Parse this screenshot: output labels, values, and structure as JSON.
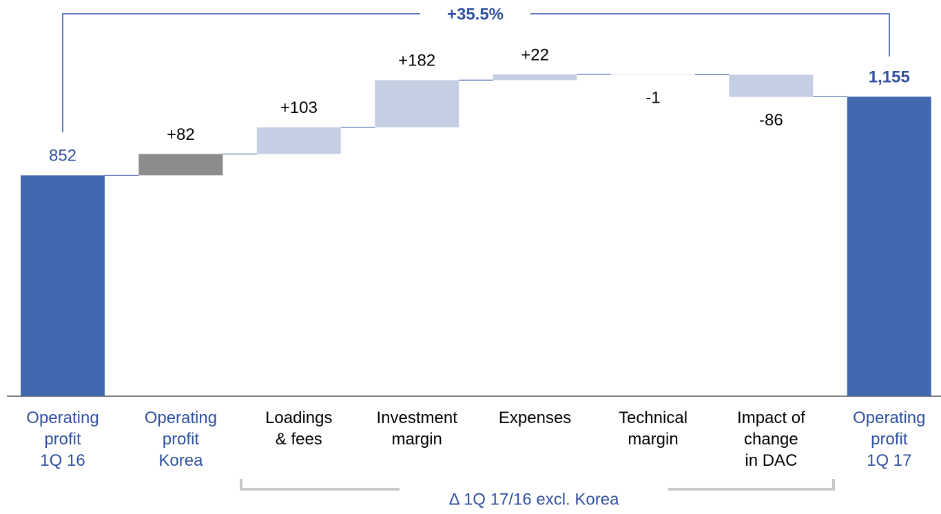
{
  "chart_data": {
    "type": "waterfall",
    "categories": [
      "Operating\nprofit\n1Q 16",
      "Operating\nprofit\nKorea",
      "Loadings\n& fees",
      "Investment\nmargin",
      "Expenses",
      "Technical\nmargin",
      "Impact of\nchange\nin DAC",
      "Operating\nprofit\n1Q 17"
    ],
    "values": [
      852,
      82,
      103,
      182,
      22,
      -1,
      -86,
      1155
    ],
    "value_labels": [
      "852",
      "+82",
      "+103",
      "+182",
      "+22",
      "-1",
      "-86",
      "1,155"
    ],
    "colors": [
      "#4169b0",
      "#8c8c8c",
      "#c5cfe3",
      "#c5cfe3",
      "#c5cfe3",
      "#c5cfe3",
      "#c5cfe3",
      "#4169b0"
    ],
    "annotations": {
      "total_change": "+35.5%",
      "bracket": "Δ 1Q 17/16 excl. Korea"
    }
  }
}
